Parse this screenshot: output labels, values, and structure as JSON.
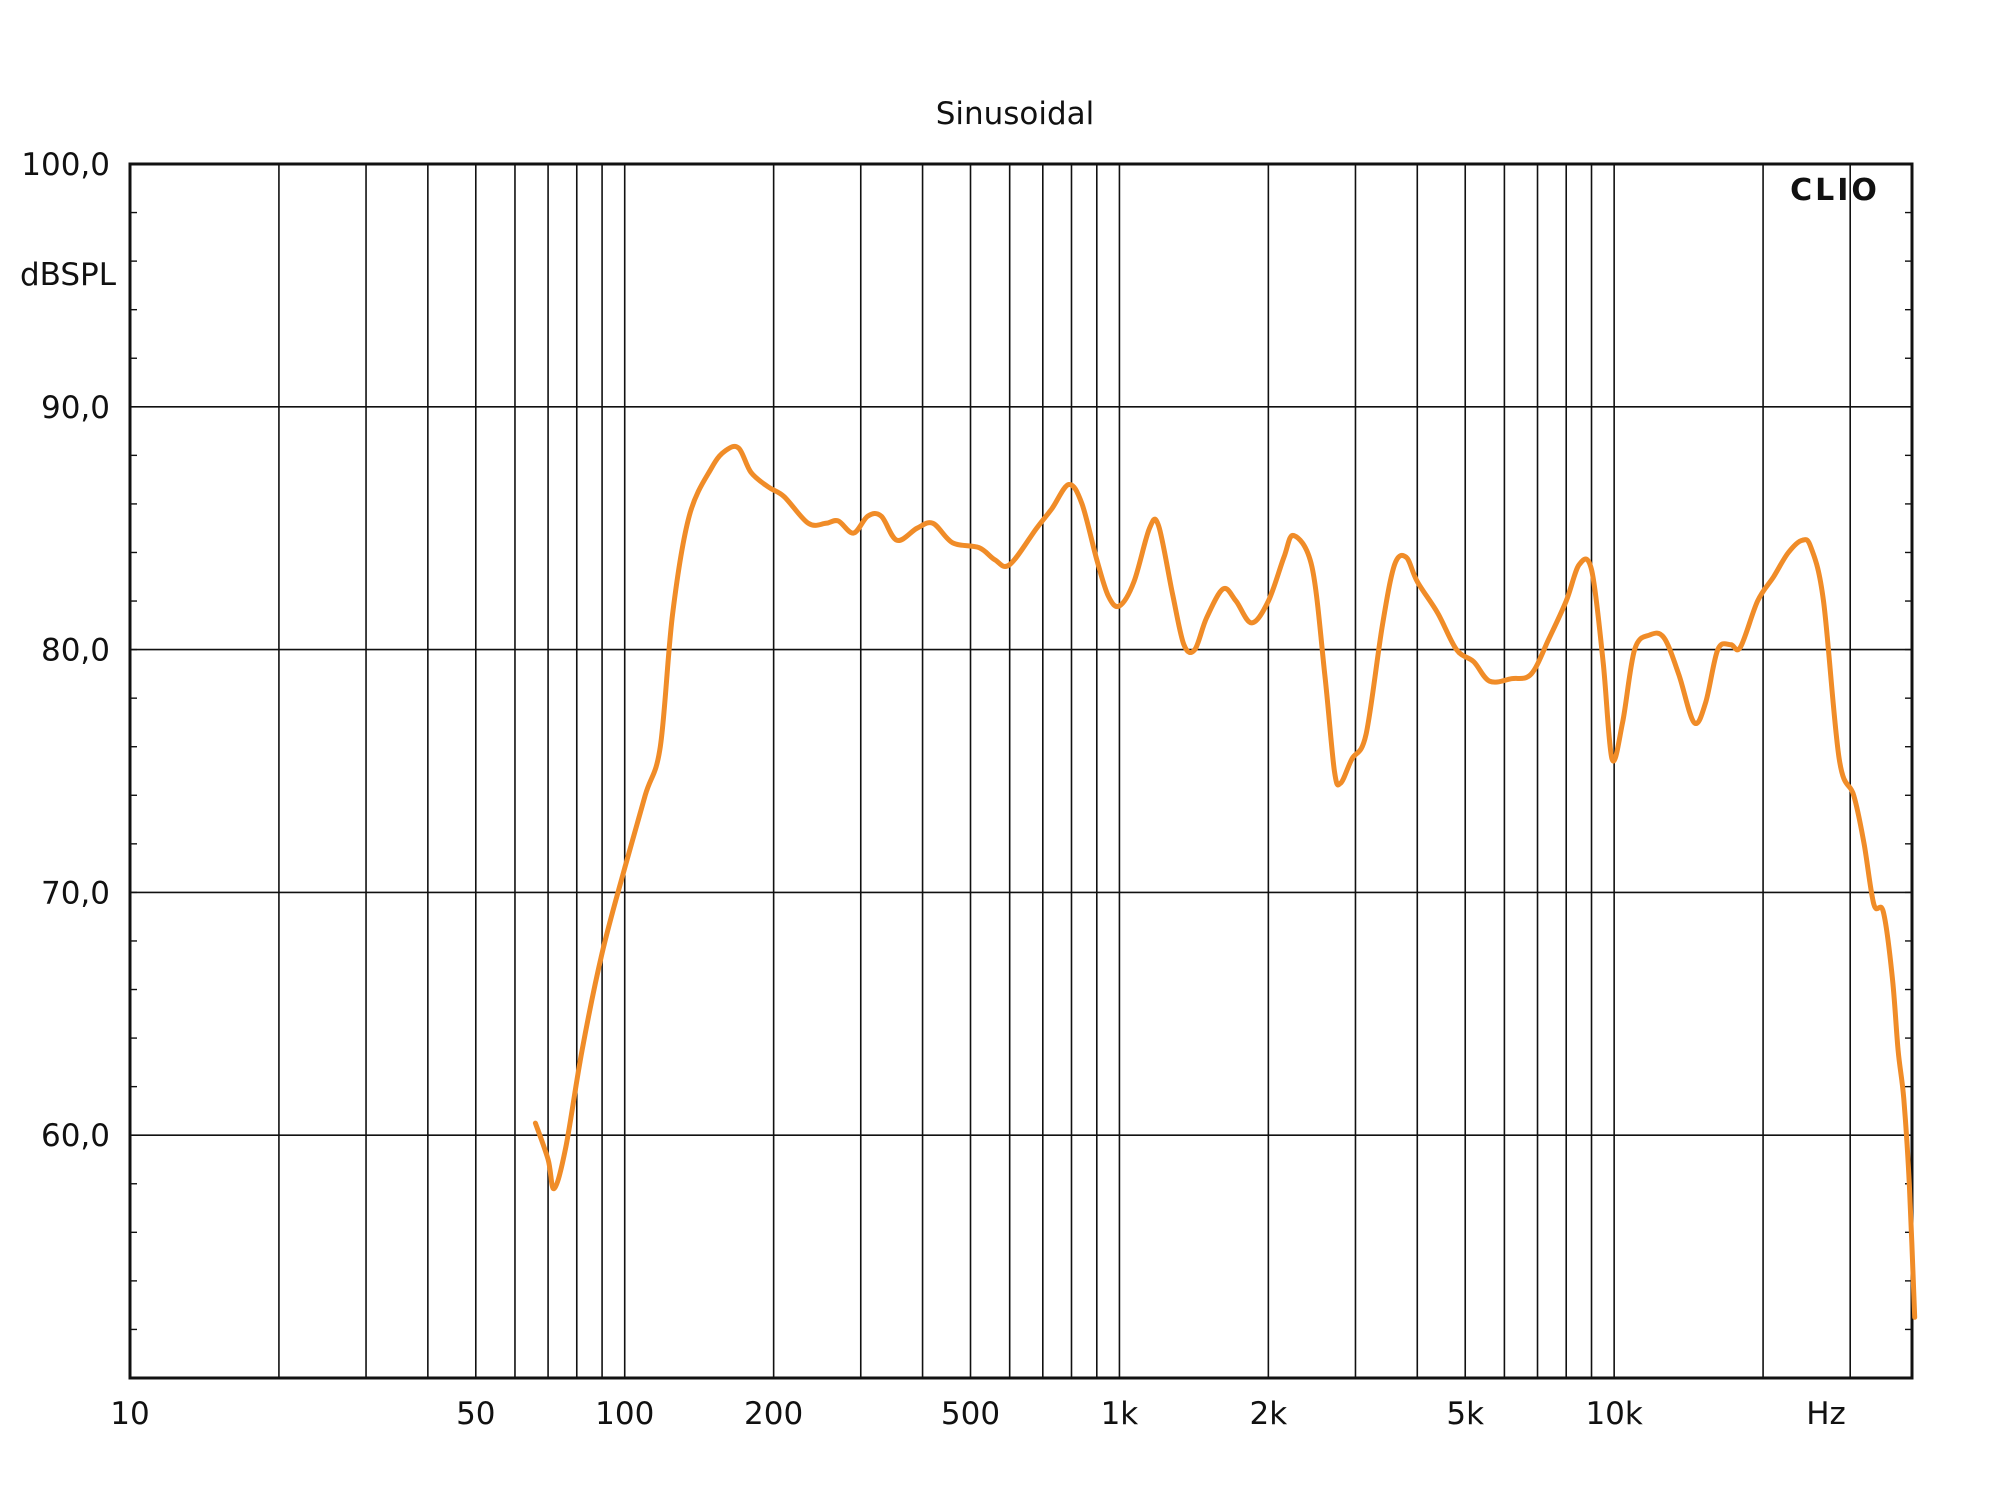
{
  "chart_data": {
    "type": "line",
    "title": "Sinusoidal",
    "xlabel": "Hz",
    "ylabel": "dBSPL",
    "logo": "CLIO",
    "x_scale": "log",
    "xlim": [
      10,
      40000
    ],
    "ylim": [
      50,
      100
    ],
    "grid": true,
    "x_tick_labels": [
      {
        "value": 10,
        "label": "10"
      },
      {
        "value": 50,
        "label": "50"
      },
      {
        "value": 100,
        "label": "100"
      },
      {
        "value": 200,
        "label": "200"
      },
      {
        "value": 500,
        "label": "500"
      },
      {
        "value": 1000,
        "label": "1k"
      },
      {
        "value": 2000,
        "label": "2k"
      },
      {
        "value": 5000,
        "label": "5k"
      },
      {
        "value": 10000,
        "label": "10k"
      }
    ],
    "y_tick_labels": [
      {
        "value": 100,
        "label": "100,0"
      },
      {
        "value": 90,
        "label": "90,0"
      },
      {
        "value": 80,
        "label": "80,0"
      },
      {
        "value": 70,
        "label": "70,0"
      },
      {
        "value": 60,
        "label": "60,0"
      }
    ],
    "series": [
      {
        "color": "#f08c28",
        "points": [
          [
            66,
            60.5
          ],
          [
            70,
            59.0
          ],
          [
            72,
            57.8
          ],
          [
            76,
            59.5
          ],
          [
            82,
            63.5
          ],
          [
            90,
            67.5
          ],
          [
            100,
            71.0
          ],
          [
            110,
            74.0
          ],
          [
            118,
            76.0
          ],
          [
            125,
            81.5
          ],
          [
            135,
            85.5
          ],
          [
            150,
            87.5
          ],
          [
            160,
            88.2
          ],
          [
            170,
            88.3
          ],
          [
            180,
            87.3
          ],
          [
            195,
            86.7
          ],
          [
            210,
            86.3
          ],
          [
            235,
            85.2
          ],
          [
            255,
            85.2
          ],
          [
            270,
            85.3
          ],
          [
            290,
            84.8
          ],
          [
            310,
            85.5
          ],
          [
            330,
            85.5
          ],
          [
            355,
            84.5
          ],
          [
            390,
            85.0
          ],
          [
            420,
            85.2
          ],
          [
            460,
            84.4
          ],
          [
            520,
            84.2
          ],
          [
            560,
            83.7
          ],
          [
            600,
            83.5
          ],
          [
            680,
            85.0
          ],
          [
            730,
            85.8
          ],
          [
            790,
            86.8
          ],
          [
            840,
            86.0
          ],
          [
            900,
            83.7
          ],
          [
            950,
            82.2
          ],
          [
            1000,
            81.8
          ],
          [
            1070,
            82.8
          ],
          [
            1150,
            85.0
          ],
          [
            1200,
            85.1
          ],
          [
            1280,
            82.3
          ],
          [
            1350,
            80.2
          ],
          [
            1420,
            80.0
          ],
          [
            1500,
            81.3
          ],
          [
            1620,
            82.5
          ],
          [
            1720,
            82.0
          ],
          [
            1850,
            81.1
          ],
          [
            2000,
            82.0
          ],
          [
            2150,
            83.8
          ],
          [
            2250,
            84.7
          ],
          [
            2450,
            83.4
          ],
          [
            2600,
            79.0
          ],
          [
            2720,
            75.0
          ],
          [
            2800,
            74.5
          ],
          [
            2950,
            75.5
          ],
          [
            3150,
            76.5
          ],
          [
            3400,
            81.0
          ],
          [
            3600,
            83.5
          ],
          [
            3800,
            83.8
          ],
          [
            4000,
            82.8
          ],
          [
            4400,
            81.5
          ],
          [
            4800,
            80.0
          ],
          [
            5200,
            79.5
          ],
          [
            5600,
            78.7
          ],
          [
            6200,
            78.8
          ],
          [
            6800,
            79.0
          ],
          [
            7400,
            80.5
          ],
          [
            8000,
            82.0
          ],
          [
            8500,
            83.5
          ],
          [
            9000,
            83.3
          ],
          [
            9500,
            79.5
          ],
          [
            9900,
            75.5
          ],
          [
            10400,
            77.0
          ],
          [
            11000,
            80.0
          ],
          [
            11800,
            80.6
          ],
          [
            12600,
            80.5
          ],
          [
            13500,
            79.0
          ],
          [
            14500,
            77.0
          ],
          [
            15300,
            77.8
          ],
          [
            16200,
            80.0
          ],
          [
            17200,
            80.2
          ],
          [
            18000,
            80.1
          ],
          [
            19500,
            82.0
          ],
          [
            21000,
            83.0
          ],
          [
            22500,
            84.0
          ],
          [
            24000,
            84.5
          ],
          [
            25000,
            84.2
          ],
          [
            26500,
            82.0
          ],
          [
            28500,
            75.5
          ],
          [
            30500,
            74.0
          ],
          [
            32000,
            72.0
          ],
          [
            33500,
            69.5
          ],
          [
            35000,
            69.2
          ],
          [
            36500,
            66.5
          ],
          [
            37500,
            63.5
          ],
          [
            38500,
            61.5
          ],
          [
            39500,
            58.0
          ],
          [
            40500,
            52.5
          ]
        ]
      }
    ]
  }
}
